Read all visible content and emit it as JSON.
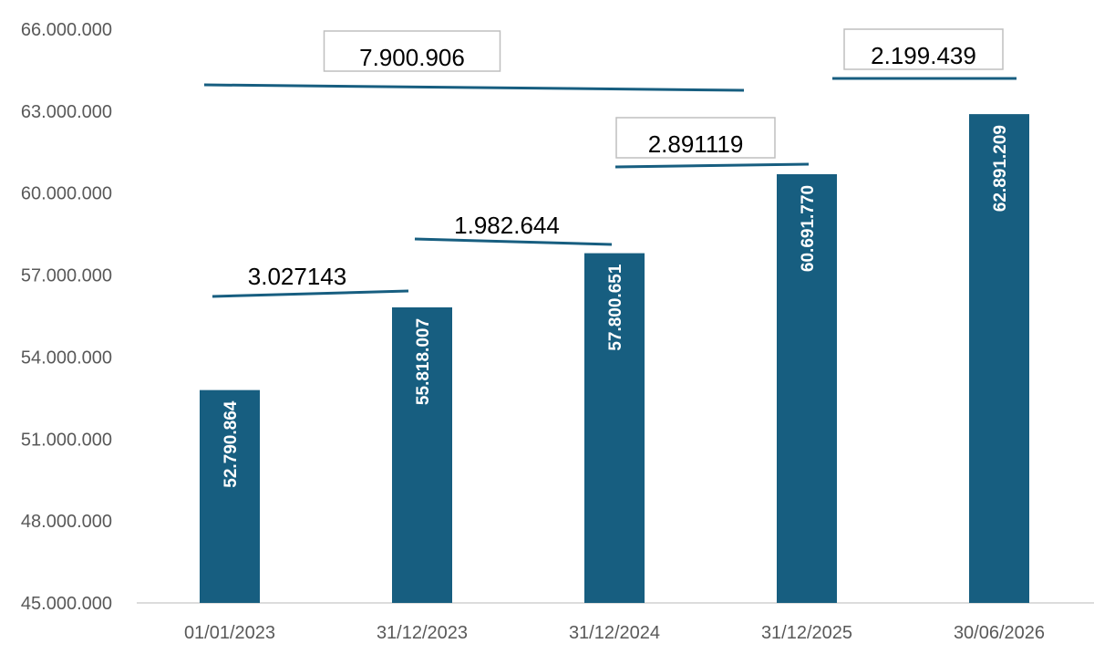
{
  "chart_data": {
    "type": "bar",
    "categories": [
      "01/01/2023",
      "31/12/2023",
      "31/12/2024",
      "31/12/2025",
      "30/06/2026"
    ],
    "values": [
      52790864,
      55818007,
      57800651,
      60691770,
      62891209
    ],
    "data_labels": [
      "52.790.864",
      "55.818.007",
      "57.800.651",
      "60.691.770",
      "62.891.209"
    ],
    "ylim": [
      45000000,
      66000000
    ],
    "yticks": [
      45000000,
      48000000,
      51000000,
      54000000,
      57000000,
      60000000,
      63000000,
      66000000
    ],
    "ytick_labels": [
      "45.000.000",
      "48.000.000",
      "51.000.000",
      "54.000.000",
      "57.000.000",
      "60.000.000",
      "63.000.000",
      "66.000.000"
    ],
    "grid": false,
    "colors": {
      "bar": "#175e80",
      "bracket": "#175e80",
      "axis": "#d0d0d0"
    },
    "annotations": [
      {
        "label": "3.027143",
        "from": 0,
        "to": 1,
        "boxed": false
      },
      {
        "label": "1.982.644",
        "from": 1,
        "to": 2,
        "boxed": false
      },
      {
        "label": "2.891119",
        "from": 2,
        "to": 3,
        "boxed": true
      },
      {
        "label": "2.199.439",
        "from": 3,
        "to": 4,
        "boxed": true
      },
      {
        "label": "7.900.906",
        "from": 0,
        "to": 3,
        "boxed": true
      }
    ]
  }
}
